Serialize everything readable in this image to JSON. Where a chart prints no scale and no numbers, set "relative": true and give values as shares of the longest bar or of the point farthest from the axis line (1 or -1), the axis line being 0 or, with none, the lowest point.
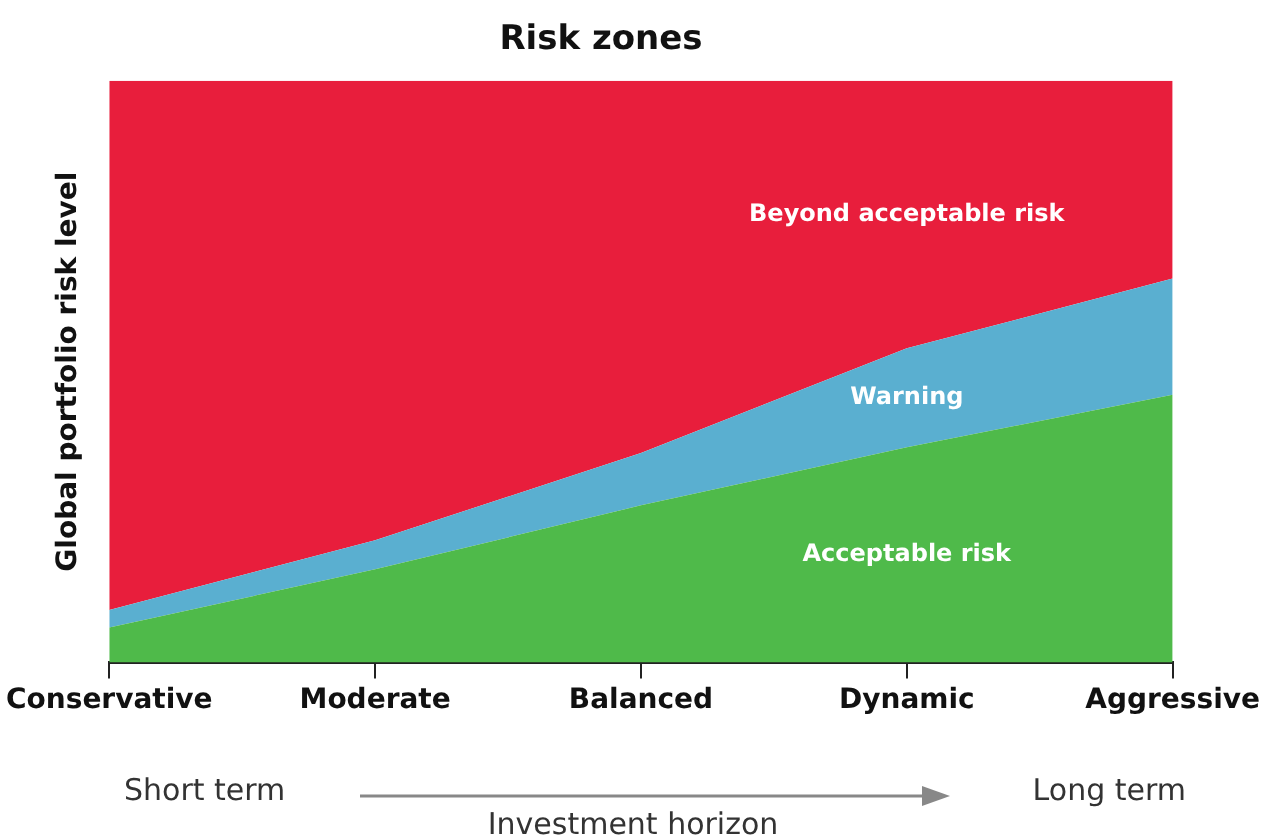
{
  "chart_data": {
    "type": "area",
    "title": "Risk zones",
    "ylabel": "Global portfolio risk level",
    "xlabel": "Investment horizon",
    "relative": true,
    "stacked": true,
    "legend": false,
    "grid": false,
    "categories": [
      "Conservative",
      "Moderate",
      "Balanced",
      "Dynamic",
      "Aggressive"
    ],
    "series": [
      {
        "name": "Acceptable risk",
        "color": "#4fba4a",
        "values": [
          0.06,
          0.16,
          0.27,
          0.37,
          0.46
        ]
      },
      {
        "name": "Warning",
        "color": "#5aafd0",
        "values": [
          0.03,
          0.05,
          0.09,
          0.17,
          0.2
        ]
      },
      {
        "name": "Beyond acceptable risk",
        "color": "#e81e3c",
        "values": [
          0.91,
          0.79,
          0.64,
          0.46,
          0.34
        ]
      }
    ],
    "annotations": [
      "Short term",
      "Long term"
    ]
  }
}
